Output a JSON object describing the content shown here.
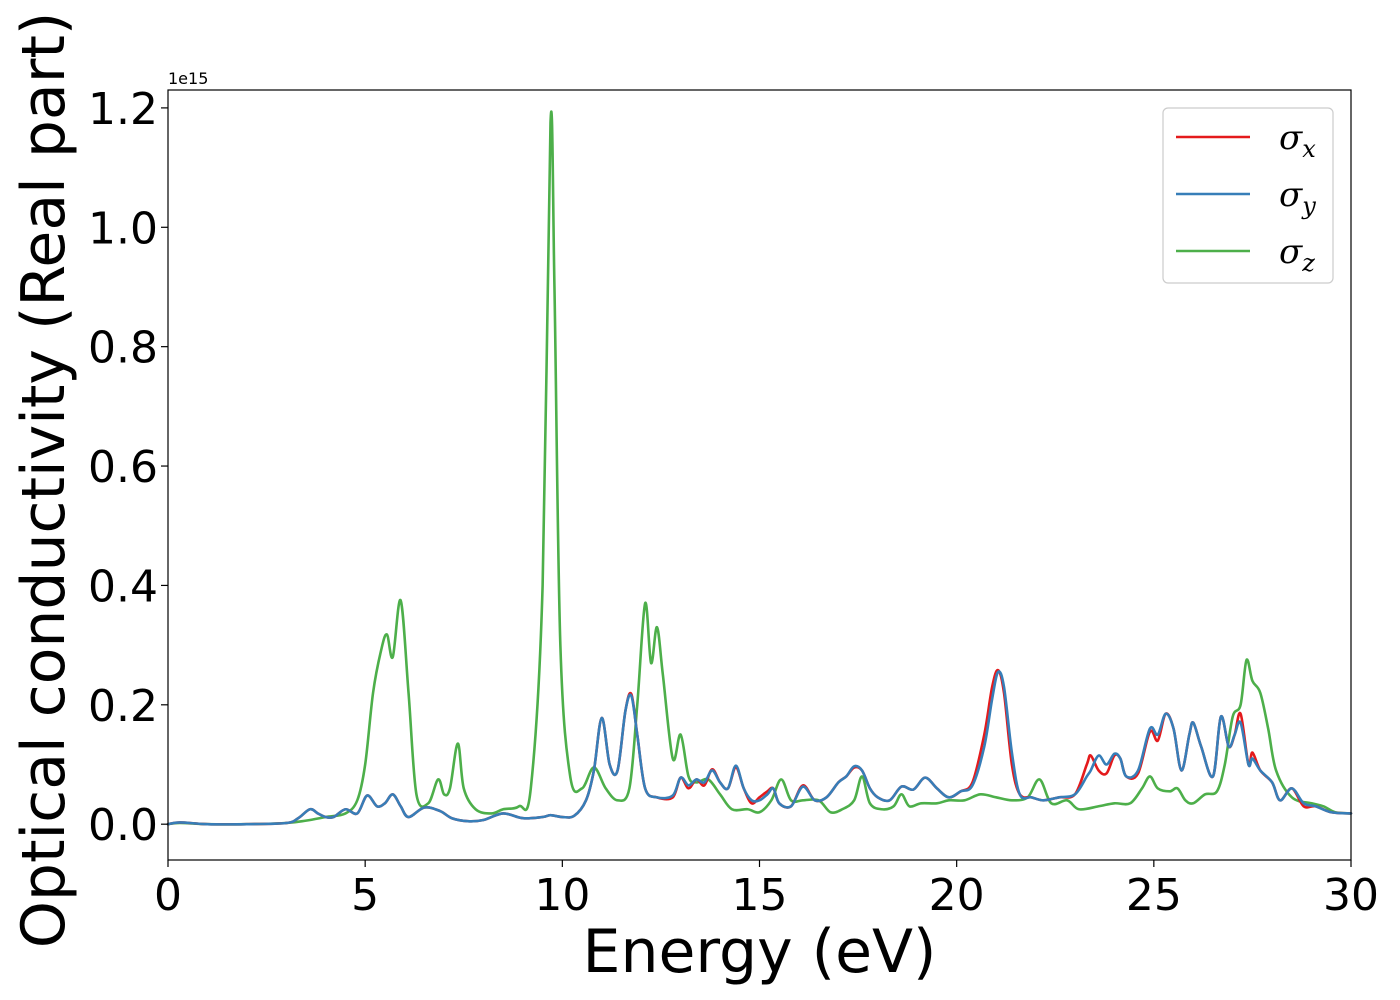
{
  "chart_data": {
    "type": "line",
    "title": "",
    "xlabel": "Energy (eV)",
    "ylabel": "Optical conductivity (Real part)",
    "y_offset_label": "1e15",
    "y_scale_factor": 1000000000000000.0,
    "xlim": [
      0,
      30
    ],
    "ylim": [
      -0.06,
      1.23
    ],
    "x_ticks": [
      0,
      5,
      10,
      15,
      20,
      25,
      30
    ],
    "x_tick_labels": [
      "0",
      "5",
      "10",
      "15",
      "20",
      "25",
      "30"
    ],
    "y_ticks": [
      0.0,
      0.2,
      0.4,
      0.6,
      0.8,
      1.0,
      1.2
    ],
    "y_tick_labels": [
      "0.0",
      "0.2",
      "0.4",
      "0.6",
      "0.8",
      "1.0",
      "1.2"
    ],
    "grid": false,
    "legend_position": "top-right",
    "series": [
      {
        "name": "σx",
        "legend_base": "σ",
        "legend_sub": "x",
        "color": "#e41a1c",
        "x": [
          0,
          0.3,
          1,
          2,
          3,
          3.3,
          3.6,
          3.8,
          4.0,
          4.2,
          4.5,
          4.8,
          5.05,
          5.3,
          5.5,
          5.7,
          5.9,
          6.1,
          6.5,
          6.9,
          7.2,
          7.6,
          8.0,
          8.5,
          9.0,
          9.5,
          9.7,
          10.0,
          10.3,
          10.6,
          10.8,
          11.0,
          11.2,
          11.4,
          11.6,
          11.75,
          11.9,
          12.1,
          12.4,
          12.8,
          13.0,
          13.2,
          13.4,
          13.6,
          13.8,
          14.0,
          14.2,
          14.4,
          14.6,
          14.8,
          15.0,
          15.2,
          15.35,
          15.5,
          15.8,
          16.1,
          16.4,
          16.7,
          17.0,
          17.2,
          17.4,
          17.6,
          17.8,
          18.0,
          18.3,
          18.6,
          18.9,
          19.2,
          19.5,
          19.8,
          20.1,
          20.4,
          20.7,
          20.9,
          21.05,
          21.2,
          21.4,
          21.6,
          21.9,
          22.2,
          22.6,
          23.0,
          23.3,
          23.4,
          23.6,
          23.8,
          24.0,
          24.15,
          24.3,
          24.6,
          24.9,
          25.1,
          25.3,
          25.5,
          25.7,
          25.9,
          26.0,
          26.2,
          26.5,
          26.7,
          26.9,
          27.05,
          27.2,
          27.4,
          27.5,
          27.7,
          28.0,
          28.2,
          28.5,
          28.8,
          29.1,
          29.5,
          30.0
        ],
        "y": [
          0.0,
          0.003,
          0.0,
          0.0,
          0.002,
          0.01,
          0.025,
          0.018,
          0.012,
          0.012,
          0.025,
          0.018,
          0.048,
          0.03,
          0.035,
          0.05,
          0.03,
          0.012,
          0.028,
          0.022,
          0.01,
          0.005,
          0.007,
          0.018,
          0.01,
          0.012,
          0.015,
          0.012,
          0.014,
          0.04,
          0.09,
          0.178,
          0.1,
          0.09,
          0.19,
          0.218,
          0.15,
          0.06,
          0.045,
          0.045,
          0.078,
          0.06,
          0.075,
          0.065,
          0.092,
          0.07,
          0.06,
          0.095,
          0.06,
          0.035,
          0.045,
          0.055,
          0.06,
          0.035,
          0.03,
          0.065,
          0.04,
          0.045,
          0.07,
          0.08,
          0.095,
          0.09,
          0.06,
          0.045,
          0.04,
          0.063,
          0.058,
          0.078,
          0.06,
          0.045,
          0.055,
          0.07,
          0.15,
          0.23,
          0.258,
          0.22,
          0.1,
          0.05,
          0.045,
          0.04,
          0.045,
          0.05,
          0.1,
          0.115,
          0.09,
          0.085,
          0.115,
          0.11,
          0.08,
          0.085,
          0.155,
          0.14,
          0.185,
          0.16,
          0.09,
          0.15,
          0.17,
          0.13,
          0.08,
          0.18,
          0.13,
          0.15,
          0.185,
          0.1,
          0.12,
          0.09,
          0.07,
          0.04,
          0.06,
          0.03,
          0.03,
          0.02,
          0.018
        ]
      },
      {
        "name": "σy",
        "legend_base": "σ",
        "legend_sub": "y",
        "color": "#377eb8",
        "x": [
          0,
          0.3,
          1,
          2,
          3,
          3.3,
          3.6,
          3.8,
          4.0,
          4.2,
          4.5,
          4.8,
          5.05,
          5.3,
          5.5,
          5.7,
          5.9,
          6.1,
          6.5,
          6.9,
          7.2,
          7.6,
          8.0,
          8.5,
          9.0,
          9.5,
          9.7,
          10.0,
          10.3,
          10.6,
          10.8,
          11.0,
          11.2,
          11.4,
          11.6,
          11.75,
          11.9,
          12.1,
          12.4,
          12.8,
          13.0,
          13.2,
          13.4,
          13.6,
          13.8,
          14.0,
          14.2,
          14.4,
          14.6,
          14.8,
          15.0,
          15.2,
          15.35,
          15.5,
          15.8,
          16.1,
          16.4,
          16.7,
          17.0,
          17.2,
          17.4,
          17.6,
          17.8,
          18.0,
          18.3,
          18.6,
          18.9,
          19.2,
          19.5,
          19.8,
          20.1,
          20.4,
          20.7,
          20.9,
          21.05,
          21.2,
          21.4,
          21.6,
          21.9,
          22.2,
          22.6,
          23.0,
          23.3,
          23.4,
          23.6,
          23.8,
          24.0,
          24.15,
          24.3,
          24.6,
          24.9,
          25.1,
          25.3,
          25.5,
          25.7,
          25.9,
          26.0,
          26.2,
          26.5,
          26.7,
          26.9,
          27.05,
          27.2,
          27.4,
          27.5,
          27.7,
          28.0,
          28.2,
          28.5,
          28.8,
          29.1,
          29.5,
          30.0
        ],
        "y": [
          0.0,
          0.003,
          0.0,
          0.0,
          0.002,
          0.01,
          0.025,
          0.018,
          0.012,
          0.012,
          0.025,
          0.018,
          0.048,
          0.03,
          0.035,
          0.05,
          0.03,
          0.012,
          0.028,
          0.022,
          0.01,
          0.005,
          0.007,
          0.018,
          0.01,
          0.012,
          0.015,
          0.012,
          0.014,
          0.04,
          0.09,
          0.178,
          0.1,
          0.09,
          0.19,
          0.215,
          0.15,
          0.06,
          0.045,
          0.048,
          0.078,
          0.065,
          0.075,
          0.07,
          0.09,
          0.07,
          0.06,
          0.098,
          0.06,
          0.04,
          0.04,
          0.05,
          0.06,
          0.035,
          0.03,
          0.063,
          0.04,
          0.045,
          0.07,
          0.08,
          0.097,
          0.09,
          0.06,
          0.045,
          0.04,
          0.063,
          0.058,
          0.078,
          0.06,
          0.045,
          0.055,
          0.065,
          0.13,
          0.21,
          0.255,
          0.23,
          0.12,
          0.05,
          0.045,
          0.04,
          0.045,
          0.05,
          0.08,
          0.09,
          0.115,
          0.1,
          0.118,
          0.11,
          0.08,
          0.09,
          0.16,
          0.15,
          0.185,
          0.16,
          0.09,
          0.15,
          0.17,
          0.13,
          0.08,
          0.18,
          0.13,
          0.15,
          0.17,
          0.1,
          0.11,
          0.09,
          0.07,
          0.04,
          0.06,
          0.035,
          0.03,
          0.02,
          0.018
        ]
      },
      {
        "name": "σz",
        "legend_base": "σ",
        "legend_sub": "z",
        "color": "#4daf4a",
        "x": [
          0,
          0.3,
          1,
          2,
          3,
          3.5,
          4.0,
          4.5,
          4.8,
          5.0,
          5.2,
          5.4,
          5.55,
          5.7,
          5.9,
          6.1,
          6.3,
          6.6,
          6.85,
          7.0,
          7.15,
          7.35,
          7.5,
          7.8,
          8.2,
          8.5,
          8.9,
          9.2,
          9.5,
          9.7,
          9.8,
          9.95,
          10.2,
          10.5,
          10.8,
          11.1,
          11.4,
          11.7,
          11.9,
          12.1,
          12.25,
          12.4,
          12.55,
          12.8,
          13.0,
          13.2,
          13.4,
          13.7,
          14.0,
          14.3,
          14.7,
          15.0,
          15.3,
          15.55,
          15.8,
          16.1,
          16.5,
          16.8,
          17.1,
          17.4,
          17.6,
          17.8,
          18.1,
          18.4,
          18.6,
          18.8,
          19.1,
          19.5,
          19.8,
          20.2,
          20.6,
          21.0,
          21.4,
          21.8,
          22.1,
          22.4,
          22.8,
          23.1,
          23.6,
          24.0,
          24.4,
          24.7,
          24.9,
          25.1,
          25.4,
          25.6,
          25.8,
          26.0,
          26.3,
          26.6,
          26.8,
          27.0,
          27.2,
          27.35,
          27.5,
          27.7,
          27.9,
          28.1,
          28.5,
          29.0,
          29.3,
          29.6,
          30.0
        ],
        "y": [
          0.0,
          0.002,
          0.0,
          0.0,
          0.002,
          0.006,
          0.012,
          0.018,
          0.04,
          0.1,
          0.22,
          0.29,
          0.318,
          0.28,
          0.375,
          0.22,
          0.05,
          0.035,
          0.075,
          0.05,
          0.06,
          0.135,
          0.06,
          0.025,
          0.018,
          0.025,
          0.03,
          0.06,
          0.4,
          1.175,
          0.9,
          0.3,
          0.08,
          0.06,
          0.095,
          0.06,
          0.04,
          0.06,
          0.2,
          0.37,
          0.27,
          0.33,
          0.25,
          0.11,
          0.15,
          0.08,
          0.07,
          0.075,
          0.05,
          0.025,
          0.025,
          0.02,
          0.04,
          0.075,
          0.04,
          0.04,
          0.04,
          0.02,
          0.025,
          0.04,
          0.08,
          0.035,
          0.025,
          0.03,
          0.05,
          0.03,
          0.035,
          0.035,
          0.04,
          0.04,
          0.05,
          0.045,
          0.04,
          0.045,
          0.075,
          0.035,
          0.04,
          0.025,
          0.03,
          0.035,
          0.035,
          0.06,
          0.08,
          0.06,
          0.055,
          0.06,
          0.04,
          0.035,
          0.05,
          0.055,
          0.1,
          0.18,
          0.2,
          0.275,
          0.24,
          0.22,
          0.16,
          0.09,
          0.045,
          0.035,
          0.03,
          0.02,
          0.018
        ]
      }
    ]
  }
}
